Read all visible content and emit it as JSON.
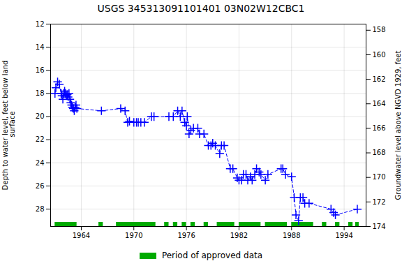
{
  "chart_data": {
    "type": "line",
    "title": "USGS 345313091101401 03N02W12CBC1",
    "ylabel": "Depth to water level, feet below land\n surface",
    "y2label": "Groundwater level above NGVD 1929, feet",
    "xlim": [
      1960.5,
      1996.5
    ],
    "xticks": [
      1964,
      1970,
      1976,
      1982,
      1988,
      1994
    ],
    "ylim": [
      29.5,
      12
    ],
    "yticks": [
      12,
      14,
      16,
      18,
      20,
      22,
      24,
      26,
      28
    ],
    "y2lim": [
      174,
      157.5
    ],
    "y2ticks": [
      174,
      172,
      170,
      168,
      166,
      164,
      162,
      160,
      158
    ],
    "grid": true,
    "legend": "bottom",
    "color": "#0000ff",
    "marker": "plus",
    "line_style": "dashed",
    "x": [
      1961.0,
      1961.1,
      1961.3,
      1961.5,
      1961.7,
      1961.8,
      1961.9,
      1962.0,
      1962.1,
      1962.2,
      1962.3,
      1962.4,
      1962.5,
      1962.6,
      1962.7,
      1962.8,
      1962.9,
      1963.0,
      1963.1,
      1963.2,
      1963.3,
      1963.4,
      1963.5,
      1966.3,
      1968.5,
      1969.0,
      1969.3,
      1969.5,
      1970.0,
      1970.3,
      1970.5,
      1970.8,
      1971.2,
      1972.0,
      1972.3,
      1974.0,
      1974.5,
      1975.0,
      1975.3,
      1975.5,
      1975.8,
      1976.0,
      1976.1,
      1976.3,
      1976.5,
      1976.8,
      1977.3,
      1977.5,
      1978.0,
      1978.5,
      1978.8,
      1979.0,
      1979.3,
      1979.8,
      1980.0,
      1980.3,
      1981.0,
      1981.3,
      1981.8,
      1982.0,
      1982.3,
      1982.5,
      1982.8,
      1983.0,
      1983.3,
      1983.5,
      1983.8,
      1984.0,
      1984.3,
      1984.5,
      1985.0,
      1985.3,
      1986.8,
      1987.0,
      1987.3,
      1988.0,
      1988.3,
      1988.5,
      1988.8,
      1989.0,
      1989.3,
      1989.5,
      1990.0,
      1992.5,
      1992.8,
      1993.0,
      1995.5
    ],
    "values": [
      18.0,
      17.5,
      17.0,
      17.2,
      18.0,
      18.2,
      18.5,
      18.0,
      17.8,
      18.0,
      18.2,
      18.1,
      18.3,
      18.0,
      18.5,
      18.8,
      19.0,
      19.2,
      19.3,
      19.5,
      19.2,
      19.0,
      19.3,
      19.5,
      19.3,
      19.5,
      20.5,
      20.4,
      20.5,
      20.5,
      20.5,
      20.5,
      20.5,
      20.0,
      20.0,
      20.0,
      20.0,
      19.5,
      20.0,
      19.5,
      20.5,
      20.8,
      20.0,
      21.5,
      21.2,
      21.0,
      21.0,
      21.5,
      21.5,
      22.5,
      22.5,
      22.3,
      22.5,
      23.2,
      22.5,
      22.5,
      24.5,
      24.5,
      25.3,
      25.5,
      25.5,
      25.0,
      25.0,
      25.5,
      25.2,
      25.5,
      25.0,
      24.5,
      24.8,
      25.0,
      25.5,
      25.0,
      24.5,
      24.5,
      25.0,
      25.2,
      27.0,
      28.5,
      29.0,
      27.0,
      27.0,
      27.5,
      27.5,
      28.0,
      28.3,
      28.5,
      28.0
    ],
    "periods": {
      "name": "Period of approved data",
      "color": "#00aa00",
      "ranges": [
        [
          1961.0,
          1963.5
        ],
        [
          1966.0,
          1966.5
        ],
        [
          1968.0,
          1972.5
        ],
        [
          1973.5,
          1974.0
        ],
        [
          1974.5,
          1975.0
        ],
        [
          1975.5,
          1976.0
        ],
        [
          1976.5,
          1977.0
        ],
        [
          1978.0,
          1978.5
        ],
        [
          1979.5,
          1981.5
        ],
        [
          1982.0,
          1984.5
        ],
        [
          1985.0,
          1987.5
        ],
        [
          1988.0,
          1990.5
        ],
        [
          1991.5,
          1992.0
        ],
        [
          1993.0,
          1993.5
        ],
        [
          1994.5,
          1995.0
        ],
        [
          1995.3,
          1995.7
        ]
      ]
    }
  }
}
